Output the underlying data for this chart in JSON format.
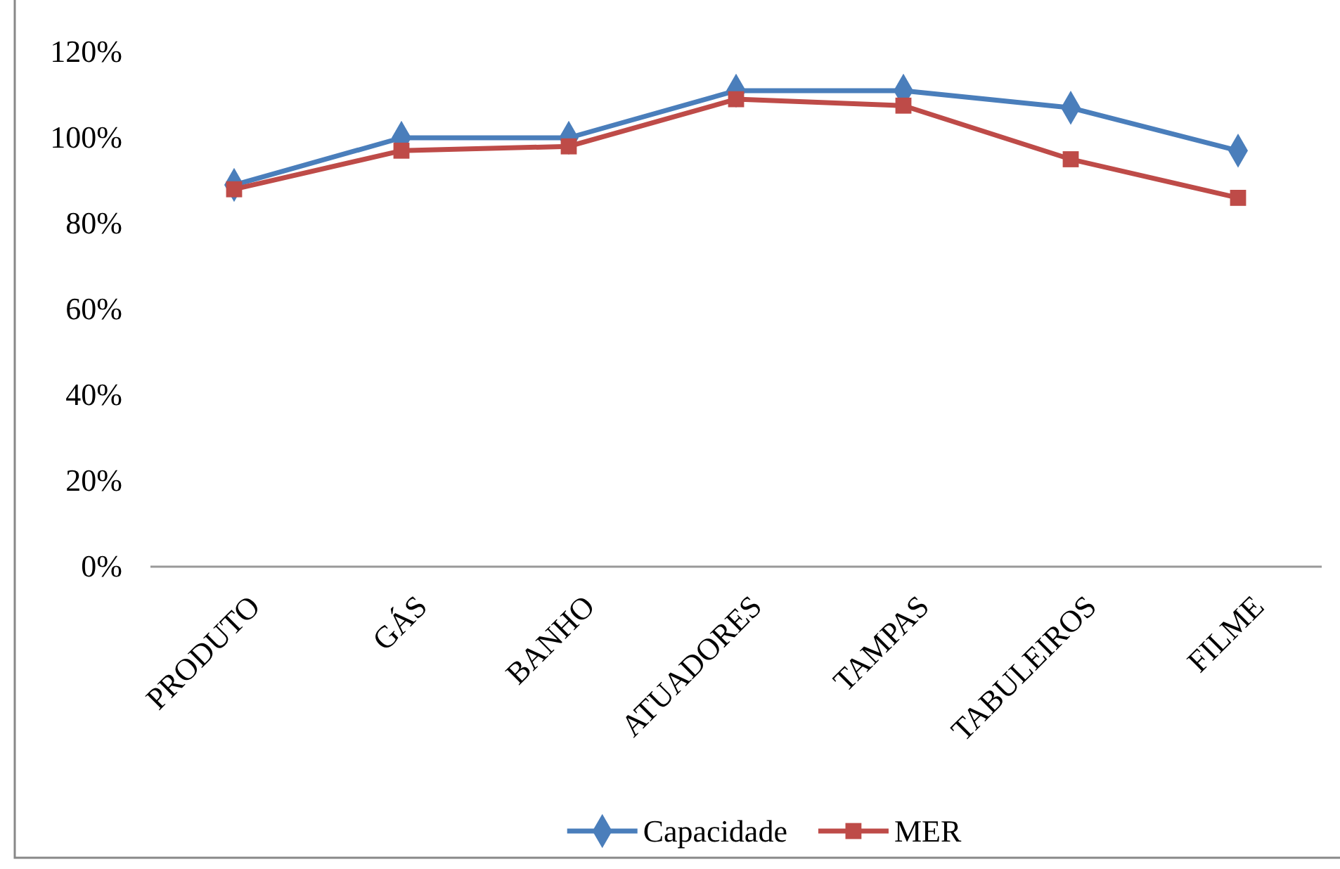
{
  "chart_data": {
    "type": "line",
    "categories": [
      "PRODUTO",
      "GÁS",
      "BANHO",
      "ATUADORES",
      "TAMPAS",
      "TABULEIROS",
      "FILME"
    ],
    "series": [
      {
        "name": "Capacidade",
        "color": "#4a7ebb",
        "marker": "diamond",
        "values": [
          89,
          100,
          100,
          111,
          111,
          107,
          97
        ]
      },
      {
        "name": "MER",
        "color": "#be4b48",
        "marker": "square",
        "values": [
          88,
          97,
          98,
          109,
          107.5,
          95,
          86
        ]
      }
    ],
    "ylim": [
      0,
      120
    ],
    "yticks": [
      {
        "value": 0,
        "label": "0%"
      },
      {
        "value": 20,
        "label": "20%"
      },
      {
        "value": 40,
        "label": "40%"
      },
      {
        "value": 60,
        "label": "60%"
      },
      {
        "value": 80,
        "label": "80%"
      },
      {
        "value": 100,
        "label": "100%"
      },
      {
        "value": 120,
        "label": "120%"
      }
    ],
    "grid": false,
    "legend": "bottom",
    "line_style": "solid"
  }
}
